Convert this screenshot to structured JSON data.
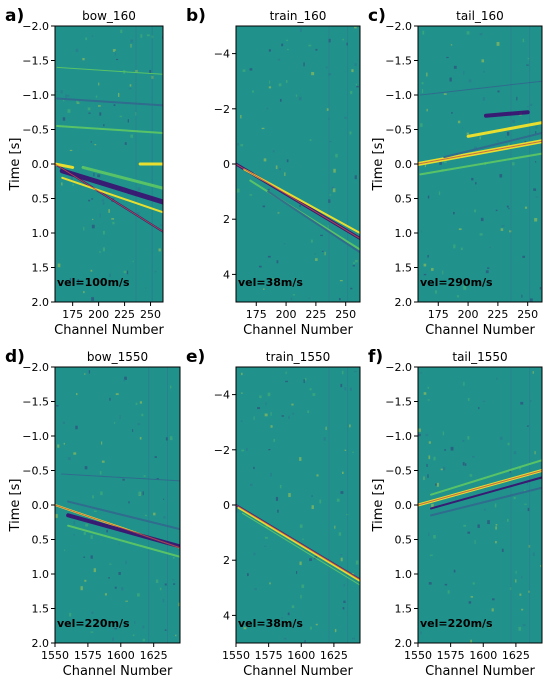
{
  "figure": {
    "colors": {
      "background": "#21918c",
      "bright": "#fde725",
      "green": "#5ec962",
      "dark": "#3b0f70",
      "blue": "#31688e",
      "fit_line": "#c0504d"
    }
  },
  "chart_data": [
    {
      "type": "heatmap",
      "panel_label": "a)",
      "title": "bow_160",
      "xlabel": "Channel Number",
      "ylabel": "Time [s]",
      "xlim": [
        158,
        262
      ],
      "ylim": [
        2.0,
        -2.0
      ],
      "xticks": [
        175,
        200,
        225,
        250
      ],
      "yticks": [
        -2.0,
        -1.5,
        -1.0,
        -0.5,
        0.0,
        0.5,
        1.0,
        1.5,
        2.0
      ],
      "ytick_labels": [
        "−2.0",
        "−1.5",
        "−1.0",
        "−0.5",
        "0.0",
        "0.5",
        "1.0",
        "1.5",
        "2.0"
      ],
      "annotation": "vel=100m/s",
      "fit_line": {
        "x": [
          158,
          262
        ],
        "y": [
          0.0,
          0.98
        ]
      },
      "events": [
        {
          "x": [
            158,
            262
          ],
          "y": [
            0.0,
            0.98
          ],
          "color": "#3b0f70",
          "width": 2
        },
        {
          "x": [
            165,
            262
          ],
          "y": [
            0.1,
            0.55
          ],
          "color": "#3b0f70",
          "width": 5
        },
        {
          "x": [
            165,
            262
          ],
          "y": [
            0.2,
            0.7
          ],
          "color": "#fde725",
          "width": 2
        },
        {
          "x": [
            185,
            262
          ],
          "y": [
            0.05,
            0.35
          ],
          "color": "#5ec962",
          "width": 3
        },
        {
          "x": [
            158,
            175
          ],
          "y": [
            0.0,
            0.05
          ],
          "color": "#fde725",
          "width": 3
        },
        {
          "x": [
            240,
            262
          ],
          "y": [
            0.0,
            0.0
          ],
          "color": "#fde725",
          "width": 3
        },
        {
          "x": [
            160,
            262
          ],
          "y": [
            -0.55,
            -0.45
          ],
          "color": "#5ec962",
          "width": 2
        },
        {
          "x": [
            160,
            262
          ],
          "y": [
            -0.95,
            -0.85
          ],
          "color": "#31688e",
          "width": 2
        },
        {
          "x": [
            160,
            262
          ],
          "y": [
            -1.4,
            -1.3
          ],
          "color": "#5ec962",
          "width": 1
        }
      ]
    },
    {
      "type": "heatmap",
      "panel_label": "b)",
      "title": "train_160",
      "xlabel": "Channel Number",
      "ylabel": "",
      "xlim": [
        158,
        262
      ],
      "ylim": [
        5.0,
        -5.0
      ],
      "xticks": [
        175,
        200,
        225,
        250
      ],
      "yticks": [
        -4,
        -2,
        0,
        2,
        4
      ],
      "ytick_labels": [
        "−4",
        "−2",
        "0",
        "2",
        "4"
      ],
      "annotation": "vel=38m/s",
      "fit_line": {
        "x": [
          158,
          262
        ],
        "y": [
          0.0,
          2.7
        ]
      },
      "events": [
        {
          "x": [
            158,
            262
          ],
          "y": [
            0.0,
            2.7
          ],
          "color": "#3b0f70",
          "width": 3
        },
        {
          "x": [
            165,
            262
          ],
          "y": [
            0.2,
            2.5
          ],
          "color": "#fde725",
          "width": 2
        },
        {
          "x": [
            170,
            262
          ],
          "y": [
            0.6,
            3.1
          ],
          "color": "#5ec962",
          "width": 2
        },
        {
          "x": [
            185,
            262
          ],
          "y": [
            1.0,
            3.2
          ],
          "color": "#31688e",
          "width": 2
        }
      ]
    },
    {
      "type": "heatmap",
      "panel_label": "c)",
      "title": "tail_160",
      "xlabel": "Channel Number",
      "ylabel": "Time [s]",
      "xlim": [
        158,
        262
      ],
      "ylim": [
        2.0,
        -2.0
      ],
      "xticks": [
        175,
        200,
        225,
        250
      ],
      "yticks": [
        -2.0,
        -1.5,
        -1.0,
        -0.5,
        0.0,
        0.5,
        1.0,
        1.5,
        2.0
      ],
      "ytick_labels": [
        "−2.0",
        "−1.5",
        "−1.0",
        "−0.5",
        "0.0",
        "0.5",
        "1.0",
        "1.5",
        "2.0"
      ],
      "annotation": "vel=290m/s",
      "fit_line": {
        "x": [
          158,
          262
        ],
        "y": [
          0.0,
          -0.33
        ]
      },
      "events": [
        {
          "x": [
            158,
            262
          ],
          "y": [
            0.0,
            -0.33
          ],
          "color": "#fde725",
          "width": 4
        },
        {
          "x": [
            200,
            262
          ],
          "y": [
            -0.4,
            -0.6
          ],
          "color": "#fde725",
          "width": 3
        },
        {
          "x": [
            215,
            250
          ],
          "y": [
            -0.7,
            -0.75
          ],
          "color": "#3b0f70",
          "width": 4
        },
        {
          "x": [
            180,
            262
          ],
          "y": [
            -0.1,
            -0.45
          ],
          "color": "#31688e",
          "width": 2
        },
        {
          "x": [
            160,
            262
          ],
          "y": [
            0.15,
            -0.15
          ],
          "color": "#5ec962",
          "width": 2
        },
        {
          "x": [
            160,
            262
          ],
          "y": [
            -1.0,
            -1.2
          ],
          "color": "#31688e",
          "width": 1
        }
      ]
    },
    {
      "type": "heatmap",
      "panel_label": "d)",
      "title": "bow_1550",
      "xlabel": "Channel Number",
      "ylabel": "Time [s]",
      "xlim": [
        1550,
        1645
      ],
      "ylim": [
        2.0,
        -2.0
      ],
      "xticks": [
        1550,
        1575,
        1600,
        1625
      ],
      "yticks": [
        -2.0,
        -1.5,
        -1.0,
        -0.5,
        0.0,
        0.5,
        1.0,
        1.5,
        2.0
      ],
      "ytick_labels": [
        "−2.0",
        "−1.5",
        "−1.0",
        "−0.5",
        "0.0",
        "0.5",
        "1.0",
        "1.5",
        "2.0"
      ],
      "annotation": "vel=220m/s",
      "fit_line": {
        "x": [
          1550,
          1645
        ],
        "y": [
          0.0,
          0.62
        ]
      },
      "events": [
        {
          "x": [
            1550,
            1645
          ],
          "y": [
            0.0,
            0.62
          ],
          "color": "#fde725",
          "width": 2
        },
        {
          "x": [
            1560,
            1645
          ],
          "y": [
            0.15,
            0.6
          ],
          "color": "#3b0f70",
          "width": 4
        },
        {
          "x": [
            1560,
            1645
          ],
          "y": [
            -0.05,
            0.35
          ],
          "color": "#31688e",
          "width": 2
        },
        {
          "x": [
            1560,
            1645
          ],
          "y": [
            0.3,
            0.75
          ],
          "color": "#5ec962",
          "width": 2
        },
        {
          "x": [
            1555,
            1645
          ],
          "y": [
            -0.45,
            -0.35
          ],
          "color": "#31688e",
          "width": 1
        }
      ]
    },
    {
      "type": "heatmap",
      "panel_label": "e)",
      "title": "train_1550",
      "xlabel": "Channel Number",
      "ylabel": "",
      "xlim": [
        1550,
        1645
      ],
      "ylim": [
        5.0,
        -5.0
      ],
      "xticks": [
        1550,
        1575,
        1600,
        1625
      ],
      "yticks": [
        -4,
        -2,
        0,
        2,
        4
      ],
      "ytick_labels": [
        "−4",
        "−2",
        "0",
        "2",
        "4"
      ],
      "annotation": "vel=38m/s",
      "fit_line": {
        "x": [
          1550,
          1645
        ],
        "y": [
          0.0,
          2.7
        ]
      },
      "events": [
        {
          "x": [
            1550,
            1645
          ],
          "y": [
            0.0,
            2.7
          ],
          "color": "#3b0f70",
          "width": 2
        },
        {
          "x": [
            1552,
            1645
          ],
          "y": [
            0.1,
            2.75
          ],
          "color": "#fde725",
          "width": 2
        },
        {
          "x": [
            1555,
            1645
          ],
          "y": [
            0.3,
            2.9
          ],
          "color": "#5ec962",
          "width": 1
        }
      ]
    },
    {
      "type": "heatmap",
      "panel_label": "f)",
      "title": "tail_1550",
      "xlabel": "Channel Number",
      "ylabel": "Time [s]",
      "xlim": [
        1550,
        1645
      ],
      "ylim": [
        2.0,
        -2.0
      ],
      "xticks": [
        1550,
        1575,
        1600,
        1625
      ],
      "yticks": [
        -2.0,
        -1.5,
        -1.0,
        -0.5,
        0.0,
        0.5,
        1.0,
        1.5,
        2.0
      ],
      "ytick_labels": [
        "−2.0",
        "−1.5",
        "−1.0",
        "−0.5",
        "0.0",
        "0.5",
        "1.0",
        "1.5",
        "2.0"
      ],
      "annotation": "vel=220m/s",
      "fit_line": {
        "x": [
          1550,
          1645
        ],
        "y": [
          0.0,
          -0.5
        ]
      },
      "events": [
        {
          "x": [
            1550,
            1645
          ],
          "y": [
            0.0,
            -0.5
          ],
          "color": "#fde725",
          "width": 3
        },
        {
          "x": [
            1560,
            1645
          ],
          "y": [
            0.05,
            -0.4
          ],
          "color": "#3b0f70",
          "width": 2
        },
        {
          "x": [
            1560,
            1645
          ],
          "y": [
            -0.15,
            -0.65
          ],
          "color": "#5ec962",
          "width": 2
        },
        {
          "x": [
            1560,
            1645
          ],
          "y": [
            0.15,
            -0.25
          ],
          "color": "#31688e",
          "width": 2
        }
      ]
    }
  ]
}
